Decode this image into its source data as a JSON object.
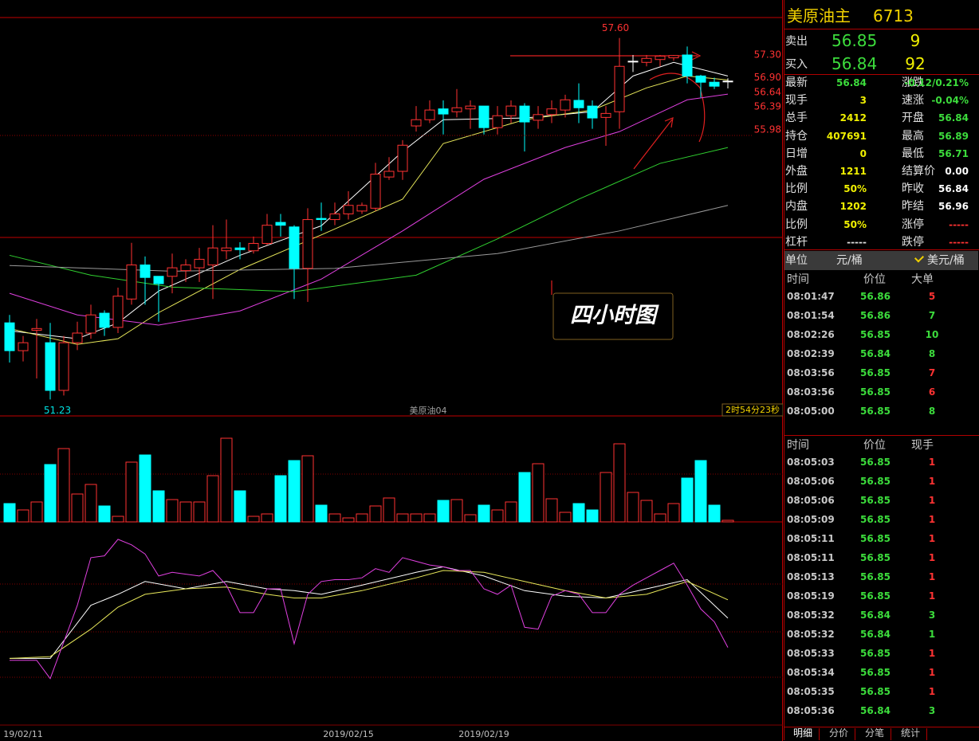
{
  "chart_data": {
    "type": "candlestick",
    "ylim": [
      50.94,
      57.96
    ],
    "up_color": "#ff3232",
    "down_color": "#00ffff",
    "flat_color": "#ffffff",
    "categories": [
      null,
      "19/02/11",
      null,
      null,
      null,
      null,
      null,
      null,
      null,
      null,
      null,
      null,
      null,
      null,
      null,
      null,
      null,
      null,
      null,
      null,
      null,
      null,
      null,
      null,
      null,
      "2019/02/15",
      null,
      null,
      null,
      null,
      null,
      null,
      null,
      null,
      null,
      "2019/02/19",
      null,
      null,
      null,
      null,
      null,
      null,
      null,
      null,
      null,
      null,
      null,
      null,
      null,
      null,
      null,
      null,
      null,
      null
    ],
    "open": [
      52.58,
      52.09,
      52.45,
      52.23,
      51.39,
      52.23,
      52.4,
      52.75,
      52.5,
      53.0,
      53.6,
      53.4,
      53.4,
      53.5,
      53.55,
      53.6,
      53.85,
      53.9,
      53.85,
      53.98,
      54.35,
      54.27,
      53.54,
      54.42,
      54.4,
      54.5,
      54.55,
      54.6,
      55.15,
      55.25,
      56.05,
      56.16,
      56.35,
      56.3,
      56.35,
      56.4,
      56.02,
      56.23,
      56.4,
      56.15,
      56.25,
      56.33,
      56.5,
      56.4,
      56.2,
      56.3,
      57.19,
      57.17,
      57.22,
      57.25,
      57.3,
      56.93,
      56.82,
      56.84
    ],
    "high": [
      52.72,
      52.35,
      52.65,
      52.58,
      52.35,
      52.6,
      52.9,
      52.8,
      53.2,
      53.99,
      53.75,
      53.4,
      53.8,
      53.7,
      53.9,
      54.3,
      54.4,
      54.0,
      54.1,
      54.5,
      54.5,
      54.3,
      54.6,
      54.7,
      54.7,
      54.9,
      54.7,
      55.4,
      55.5,
      55.8,
      56.4,
      56.5,
      56.5,
      56.7,
      56.5,
      56.4,
      56.4,
      56.5,
      56.45,
      56.4,
      56.5,
      56.6,
      56.8,
      56.5,
      56.4,
      57.6,
      57.3,
      57.3,
      57.3,
      57.3,
      57.45,
      56.95,
      56.9,
      56.89
    ],
    "low": [
      51.88,
      51.9,
      51.6,
      51.23,
      51.3,
      52.1,
      52.3,
      52.35,
      52.4,
      52.9,
      52.9,
      52.6,
      53.1,
      53.3,
      53.3,
      53.0,
      53.7,
      53.7,
      53.8,
      53.95,
      54.1,
      53.0,
      52.95,
      54.2,
      54.3,
      54.4,
      54.5,
      54.55,
      55.1,
      55.1,
      55.95,
      56.1,
      55.9,
      56.2,
      56.0,
      55.9,
      55.9,
      56.1,
      55.6,
      56.0,
      56.1,
      56.2,
      56.1,
      56.0,
      55.7,
      56.0,
      57.0,
      57.1,
      57.1,
      57.2,
      56.8,
      56.55,
      56.7,
      56.71
    ],
    "close": [
      52.09,
      52.23,
      52.48,
      51.39,
      52.23,
      52.4,
      52.72,
      52.5,
      53.05,
      53.6,
      53.38,
      53.27,
      53.55,
      53.6,
      53.7,
      53.9,
      53.9,
      53.87,
      53.98,
      54.3,
      54.3,
      53.54,
      54.4,
      54.4,
      54.5,
      54.65,
      54.65,
      55.2,
      55.25,
      55.71,
      56.16,
      56.33,
      56.26,
      56.37,
      56.4,
      56.02,
      56.23,
      56.4,
      56.12,
      56.25,
      56.35,
      56.51,
      56.37,
      56.19,
      56.27,
      57.1,
      57.19,
      57.24,
      57.28,
      57.29,
      56.93,
      56.82,
      56.75,
      56.84
    ],
    "moving_averages": [
      {
        "color": "#ffffff",
        "x": [
          0,
          5,
          8,
          11,
          17,
          23,
          29,
          32,
          38,
          43,
          46,
          49,
          53
        ],
        "values": [
          52.44,
          52.3,
          52.58,
          53.14,
          53.77,
          54.29,
          55.6,
          56.16,
          56.19,
          56.3,
          56.93,
          57.17,
          56.93
        ]
      },
      {
        "color": "#e8e85a",
        "x": [
          0,
          5,
          8,
          11,
          17,
          23,
          29,
          32,
          38,
          43,
          47,
          50,
          53
        ],
        "values": [
          52.48,
          52.2,
          52.3,
          52.76,
          53.52,
          54.13,
          54.76,
          55.74,
          56.16,
          56.33,
          56.72,
          56.93,
          56.86
        ]
      },
      {
        "color": "#e040e0",
        "x": [
          0,
          5,
          11,
          17,
          23,
          29,
          35,
          41,
          45,
          50,
          53
        ],
        "values": [
          53.1,
          52.72,
          52.54,
          52.79,
          53.35,
          54.2,
          55.11,
          55.67,
          55.95,
          56.51,
          56.61
        ]
      },
      {
        "color": "#30d030",
        "x": [
          0,
          6,
          12,
          21,
          30,
          36,
          42,
          48,
          53
        ],
        "values": [
          53.77,
          53.42,
          53.21,
          53.13,
          53.42,
          54.06,
          54.76,
          55.39,
          55.67
        ]
      },
      {
        "color": "#9a9a9a",
        "x": [
          0,
          12,
          24,
          36,
          45,
          53
        ],
        "values": [
          53.59,
          53.49,
          53.54,
          53.8,
          54.2,
          54.65
        ]
      }
    ],
    "high_label": {
      "value": 57.6,
      "label": "57.60"
    },
    "low_label": {
      "value": 51.23,
      "label": "51.23"
    },
    "price_marks": [
      {
        "value": 57.3,
        "label": "57.30"
      },
      {
        "value": 56.9,
        "label": "56.90"
      },
      {
        "value": 56.64,
        "label": "56.64"
      },
      {
        "value": 56.39,
        "label": "56.39"
      },
      {
        "value": 55.98,
        "label": "55.98"
      }
    ],
    "contract": "美原油04",
    "countdown": "2时54分23秒",
    "annotation": "四小时图",
    "volume": {
      "ylim": [
        0,
        115
      ],
      "values": [
        23,
        15,
        25,
        72,
        92,
        35,
        47,
        20,
        7,
        75,
        84,
        39,
        28,
        25,
        25,
        58,
        105,
        39,
        7,
        10,
        58,
        77,
        83,
        21,
        10,
        5,
        10,
        20,
        30,
        10,
        10,
        10,
        27,
        28,
        9,
        21,
        15,
        25,
        62,
        73,
        29,
        12,
        23,
        15,
        62,
        98,
        37,
        27,
        10,
        23,
        55,
        77,
        21,
        2
      ]
    },
    "kdj": {
      "ylim": [
        0,
        100
      ],
      "lines": [
        {
          "color": "#ffffff",
          "x": [
            0,
            3,
            6,
            8,
            10,
            13,
            16,
            19,
            21,
            23,
            26,
            30,
            32,
            35,
            38,
            41,
            44,
            47,
            50,
            53
          ],
          "values": [
            32,
            32,
            61,
            67,
            74,
            70,
            74,
            70,
            69,
            67,
            72,
            79,
            82,
            77,
            69,
            66,
            65,
            70,
            75,
            54
          ]
        },
        {
          "color": "#e8e85a",
          "x": [
            0,
            3,
            6,
            8,
            10,
            13,
            16,
            19,
            21,
            23,
            26,
            30,
            32,
            35,
            38,
            41,
            44,
            47,
            50,
            53
          ],
          "values": [
            32,
            33,
            48,
            60,
            67,
            70,
            71,
            67,
            65,
            65,
            69,
            76,
            80,
            79,
            74,
            69,
            65,
            67,
            74,
            64
          ]
        },
        {
          "color": "#e040e0",
          "x": [
            0,
            1,
            2,
            3,
            4,
            5,
            6,
            7,
            8,
            9,
            10,
            11,
            12,
            13,
            14,
            15,
            16,
            17,
            18,
            19,
            20,
            21,
            22,
            23,
            24,
            25,
            26,
            27,
            28,
            29,
            30,
            31,
            32,
            33,
            34,
            35,
            36,
            37,
            38,
            39,
            40,
            41,
            42,
            43,
            44,
            45,
            46,
            47,
            48,
            49,
            50,
            51,
            52,
            53
          ],
          "values": [
            31,
            31,
            31,
            21,
            41,
            61,
            87,
            88,
            97,
            94,
            89,
            77,
            79,
            78,
            77,
            80,
            72,
            57,
            57,
            70,
            70,
            40,
            67,
            74,
            75,
            75,
            76,
            81,
            79,
            87,
            85,
            83,
            82,
            80,
            80,
            70,
            67,
            72,
            49,
            48,
            66,
            69,
            67,
            57,
            57,
            67,
            72,
            76,
            80,
            84,
            72,
            59,
            52,
            38
          ]
        }
      ]
    }
  },
  "quote": {
    "name": "美原油主",
    "code": "6713",
    "depth": [
      {
        "label": "卖出",
        "price": "56.85",
        "qty": "9"
      },
      {
        "label": "买入",
        "price": "56.84",
        "qty": "92"
      }
    ],
    "stats": [
      [
        {
          "label": "最新",
          "value": "56.84",
          "color": "#3cdc3c"
        },
        {
          "label": "涨跌",
          "value": "-0.12/0.21%",
          "color": "#3cdc3c"
        }
      ],
      [
        {
          "label": "现手",
          "value": "3",
          "color": "#f0f000"
        },
        {
          "label": "速涨",
          "value": "-0.04%",
          "color": "#3cdc3c"
        }
      ],
      [
        {
          "label": "总手",
          "value": "2412",
          "color": "#f0f000"
        },
        {
          "label": "开盘",
          "value": "56.84",
          "color": "#3cdc3c"
        }
      ],
      [
        {
          "label": "持仓",
          "value": "407691",
          "color": "#f0f000"
        },
        {
          "label": "最高",
          "value": "56.89",
          "color": "#3cdc3c"
        }
      ],
      [
        {
          "label": "日增",
          "value": "0",
          "color": "#f0f000"
        },
        {
          "label": "最低",
          "value": "56.71",
          "color": "#3cdc3c"
        }
      ],
      [
        {
          "label": "外盘",
          "value": "1211",
          "color": "#f0f000"
        },
        {
          "label": "结算价",
          "value": "0.00",
          "color": "#ffffff"
        }
      ],
      [
        {
          "label": "比例",
          "value": "50%",
          "color": "#f0f000"
        },
        {
          "label": "昨收",
          "value": "56.84",
          "color": "#ffffff"
        }
      ],
      [
        {
          "label": "内盘",
          "value": "1202",
          "color": "#f0f000"
        },
        {
          "label": "昨结",
          "value": "56.96",
          "color": "#ffffff"
        }
      ],
      [
        {
          "label": "比例",
          "value": "50%",
          "color": "#f0f000"
        },
        {
          "label": "涨停",
          "value": "-----",
          "color": "#ff3333"
        }
      ],
      [
        {
          "label": "杠杆",
          "value": "-----",
          "color": "#dddddd"
        },
        {
          "label": "跌停",
          "value": "-----",
          "color": "#ff3333"
        }
      ]
    ],
    "unit": {
      "label": "单位",
      "options": [
        "元/桶",
        "美元/桶"
      ],
      "selected": 1
    }
  },
  "big_orders": {
    "headers": [
      "时间",
      "价位",
      "大单"
    ],
    "rows": [
      {
        "time": "08:01:47",
        "price": "56.86",
        "qty": "5",
        "color": "#ff3333"
      },
      {
        "time": "08:01:54",
        "price": "56.86",
        "qty": "7",
        "color": "#3cdc3c"
      },
      {
        "time": "08:02:26",
        "price": "56.85",
        "qty": "10",
        "color": "#3cdc3c"
      },
      {
        "time": "08:02:39",
        "price": "56.84",
        "qty": "8",
        "color": "#3cdc3c"
      },
      {
        "time": "08:03:56",
        "price": "56.85",
        "qty": "7",
        "color": "#ff3333"
      },
      {
        "time": "08:03:56",
        "price": "56.85",
        "qty": "6",
        "color": "#ff3333"
      },
      {
        "time": "08:05:00",
        "price": "56.85",
        "qty": "8",
        "color": "#3cdc3c"
      }
    ]
  },
  "ticks": {
    "headers": [
      "时间",
      "价位",
      "现手"
    ],
    "rows": [
      {
        "time": "08:05:03",
        "price": "56.85",
        "qty": "1",
        "color": "#ff3333"
      },
      {
        "time": "08:05:06",
        "price": "56.85",
        "qty": "1",
        "color": "#ff3333"
      },
      {
        "time": "08:05:06",
        "price": "56.85",
        "qty": "1",
        "color": "#ff3333"
      },
      {
        "time": "08:05:09",
        "price": "56.85",
        "qty": "1",
        "color": "#ff3333"
      },
      {
        "time": "08:05:11",
        "price": "56.85",
        "qty": "1",
        "color": "#ff3333"
      },
      {
        "time": "08:05:11",
        "price": "56.85",
        "qty": "1",
        "color": "#ff3333"
      },
      {
        "time": "08:05:13",
        "price": "56.85",
        "qty": "1",
        "color": "#ff3333"
      },
      {
        "time": "08:05:19",
        "price": "56.85",
        "qty": "1",
        "color": "#ff3333"
      },
      {
        "time": "08:05:32",
        "price": "56.84",
        "qty": "3",
        "color": "#3cdc3c"
      },
      {
        "time": "08:05:32",
        "price": "56.84",
        "qty": "1",
        "color": "#3cdc3c"
      },
      {
        "time": "08:05:33",
        "price": "56.85",
        "qty": "1",
        "color": "#ff3333"
      },
      {
        "time": "08:05:34",
        "price": "56.85",
        "qty": "1",
        "color": "#ff3333"
      },
      {
        "time": "08:05:35",
        "price": "56.85",
        "qty": "1",
        "color": "#ff3333"
      },
      {
        "time": "08:05:36",
        "price": "56.84",
        "qty": "3",
        "color": "#3cdc3c"
      }
    ]
  },
  "tabs": [
    "明细",
    "分价",
    "分笔",
    "统计"
  ]
}
